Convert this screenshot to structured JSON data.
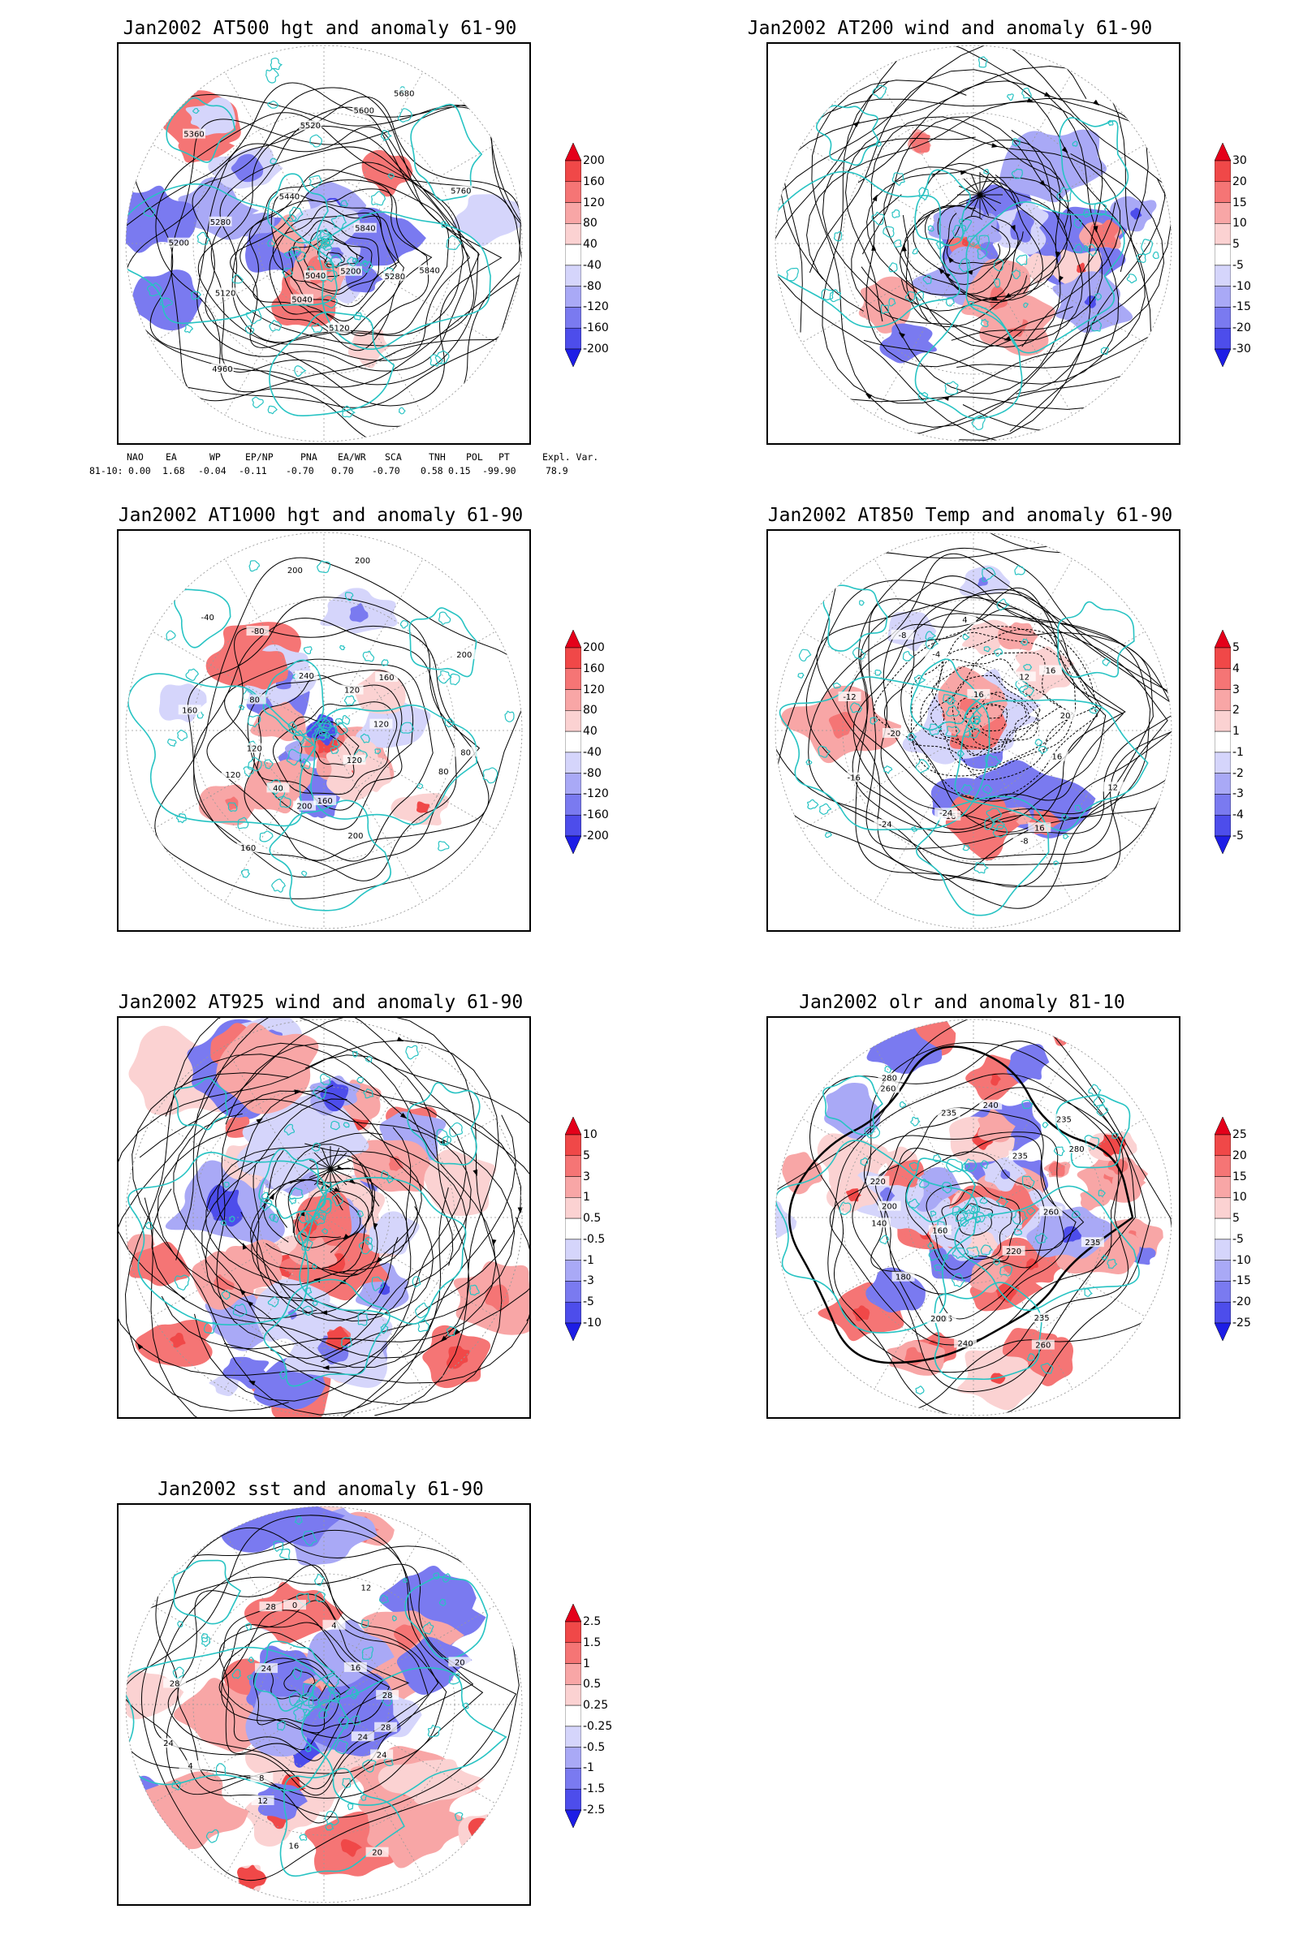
{
  "panels": [
    {
      "key": "p1",
      "title": "Jan2002 AT500 hgt and anomaly 61-90",
      "kind": "height",
      "contour_labels": [
        "5840",
        "5280",
        "5200",
        "5120",
        "5040",
        "5040",
        "4960",
        "5120",
        "5200",
        "5280",
        "5360",
        "5440",
        "5520",
        "5600",
        "5680",
        "5760",
        "5840"
      ],
      "colorbar": {
        "labels": [
          "200",
          "160",
          "120",
          "80",
          "40",
          "-40",
          "-80",
          "-120",
          "-160",
          "-200"
        ]
      }
    },
    {
      "key": "p2",
      "title": "Jan2002 AT200 wind and anomaly 61-90",
      "kind": "wind",
      "contour_labels": [],
      "colorbar": {
        "labels": [
          "30",
          "20",
          "15",
          "10",
          "5",
          "-5",
          "-10",
          "-15",
          "-20",
          "-30"
        ]
      }
    },
    {
      "key": "p3",
      "title": "Jan2002 AT1000 hgt and anomaly 61-90",
      "kind": "height",
      "contour_labels": [
        "80",
        "80",
        "120",
        "200",
        "160",
        "200",
        "160",
        "40",
        "120",
        "120",
        "160",
        "80",
        "-40",
        "-80",
        "240",
        "200",
        "200",
        "120",
        "160",
        "200",
        "120"
      ],
      "colorbar": {
        "labels": [
          "200",
          "160",
          "120",
          "80",
          "40",
          "-40",
          "-80",
          "-120",
          "-160",
          "-200"
        ]
      }
    },
    {
      "key": "p4",
      "title": "Jan2002 AT850 Temp and anomaly 61-90",
      "kind": "temp",
      "contour_labels": [
        "16",
        "12",
        "16",
        "-8",
        "-16",
        "-24",
        "-24",
        "-16",
        "-20",
        "-12",
        "-8",
        "-4",
        "4",
        "16",
        "12",
        "16",
        "20"
      ],
      "colorbar": {
        "labels": [
          "5",
          "4",
          "3",
          "2",
          "1",
          "-1",
          "-2",
          "-3",
          "-4",
          "-5"
        ]
      }
    },
    {
      "key": "p5",
      "title": "Jan2002 AT925 wind and anomaly 61-90",
      "kind": "wind",
      "contour_labels": [],
      "colorbar": {
        "labels": [
          "10",
          "5",
          "3",
          "1",
          "0.5",
          "-0.5",
          "-1",
          "-3",
          "-5",
          "-10"
        ]
      }
    },
    {
      "key": "p6",
      "title": "Jan2002 olr and anomaly 81-10",
      "kind": "olr",
      "contour_labels": [
        "235",
        "220",
        "235",
        "260",
        "240",
        "235",
        "200",
        "180",
        "160",
        "140",
        "200",
        "220",
        "260",
        "280",
        "235",
        "240",
        "235",
        "235",
        "280",
        "260"
      ],
      "colorbar": {
        "labels": [
          "25",
          "20",
          "15",
          "10",
          "5",
          "-5",
          "-10",
          "-15",
          "-20",
          "-25"
        ]
      }
    },
    {
      "key": "p7",
      "title": "Jan2002 sst and anomaly 61-90",
      "kind": "sst",
      "contour_labels": [
        "28",
        "24",
        "24",
        "20",
        "16",
        "12",
        "8",
        "4",
        "24",
        "28",
        "24",
        "28",
        "0",
        "4",
        "12",
        "16",
        "20",
        "28"
      ],
      "colorbar": {
        "labels": [
          "2.5",
          "1.5",
          "1",
          "0.5",
          "0.25",
          "-0.25",
          "-0.5",
          "-1",
          "-1.5",
          "-2.5"
        ]
      }
    }
  ],
  "teleconnection": {
    "headers": [
      "NAO",
      "EA",
      "WP",
      "EP/NP",
      "PNA",
      "EA/WR",
      "SCA",
      "TNH",
      "POL",
      "PT",
      "Expl. Var."
    ],
    "row_label": "81-10:",
    "values": [
      "0.00",
      "1.68",
      "-0.04",
      "-0.11",
      "-0.70",
      "0.70",
      "-0.70",
      "0.58",
      "0.15",
      "-99.90",
      "78.9"
    ]
  },
  "colors": {
    "coast": "#27c3c3",
    "positive": "#e02020",
    "negative": "#2030e0",
    "contour": "#000000",
    "grid": "#999999"
  },
  "colorbar_scale": {
    "fills": [
      "#e4001a",
      "#f04848",
      "#f57575",
      "#f8a6a6",
      "#fbd2d2",
      "#ffffff",
      "#d5d5fb",
      "#a9a9f6",
      "#7a7af0",
      "#4d4deb",
      "#1d1de6"
    ]
  }
}
